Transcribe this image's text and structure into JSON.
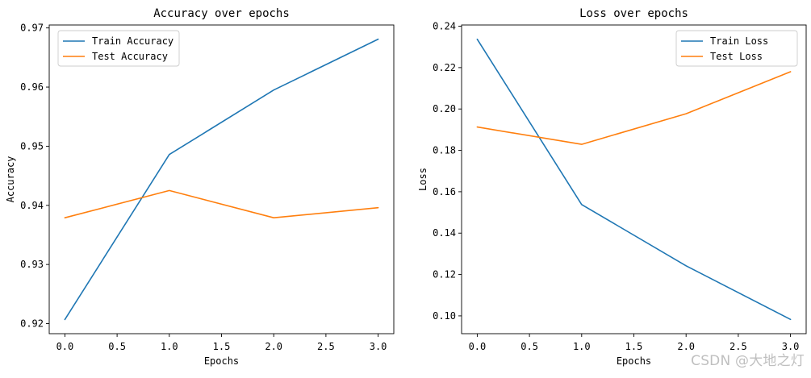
{
  "watermark": "CSDN @大地之灯",
  "chart_data": [
    {
      "type": "line",
      "title": "Accuracy over epochs",
      "xlabel": "Epochs",
      "ylabel": "Accuracy",
      "x": [
        0,
        1,
        2,
        3
      ],
      "xlim": [
        -0.15,
        3.15
      ],
      "ylim": [
        0.9183,
        0.9705
      ],
      "xticks": [
        0.0,
        0.5,
        1.0,
        1.5,
        2.0,
        2.5,
        3.0
      ],
      "xtick_labels": [
        "0.0",
        "0.5",
        "1.0",
        "1.5",
        "2.0",
        "2.5",
        "3.0"
      ],
      "yticks": [
        0.92,
        0.93,
        0.94,
        0.95,
        0.96,
        0.97
      ],
      "ytick_labels": [
        "0.92",
        "0.93",
        "0.94",
        "0.95",
        "0.96",
        "0.97"
      ],
      "grid": false,
      "legend_position": "top-left",
      "series": [
        {
          "name": "Train Accuracy",
          "color": "#1f77b4",
          "values": [
            0.9207,
            0.9486,
            0.9595,
            0.9681
          ]
        },
        {
          "name": "Test Accuracy",
          "color": "#ff7f0e",
          "values": [
            0.9379,
            0.9425,
            0.9379,
            0.9396
          ]
        }
      ]
    },
    {
      "type": "line",
      "title": "Loss over epochs",
      "xlabel": "Epochs",
      "ylabel": "Loss",
      "x": [
        0,
        1,
        2,
        3
      ],
      "xlim": [
        -0.15,
        3.15
      ],
      "ylim": [
        0.0914,
        0.2406
      ],
      "xticks": [
        0.0,
        0.5,
        1.0,
        1.5,
        2.0,
        2.5,
        3.0
      ],
      "xtick_labels": [
        "0.0",
        "0.5",
        "1.0",
        "1.5",
        "2.0",
        "2.5",
        "3.0"
      ],
      "yticks": [
        0.1,
        0.12,
        0.14,
        0.16,
        0.18,
        0.2,
        0.22,
        0.24
      ],
      "ytick_labels": [
        "0.10",
        "0.12",
        "0.14",
        "0.16",
        "0.18",
        "0.20",
        "0.22",
        "0.24"
      ],
      "grid": false,
      "legend_position": "top-right",
      "series": [
        {
          "name": "Train Loss",
          "color": "#1f77b4",
          "values": [
            0.2337,
            0.1538,
            0.1242,
            0.0983
          ]
        },
        {
          "name": "Test Loss",
          "color": "#ff7f0e",
          "values": [
            0.1913,
            0.1829,
            0.1977,
            0.218
          ]
        }
      ]
    }
  ]
}
